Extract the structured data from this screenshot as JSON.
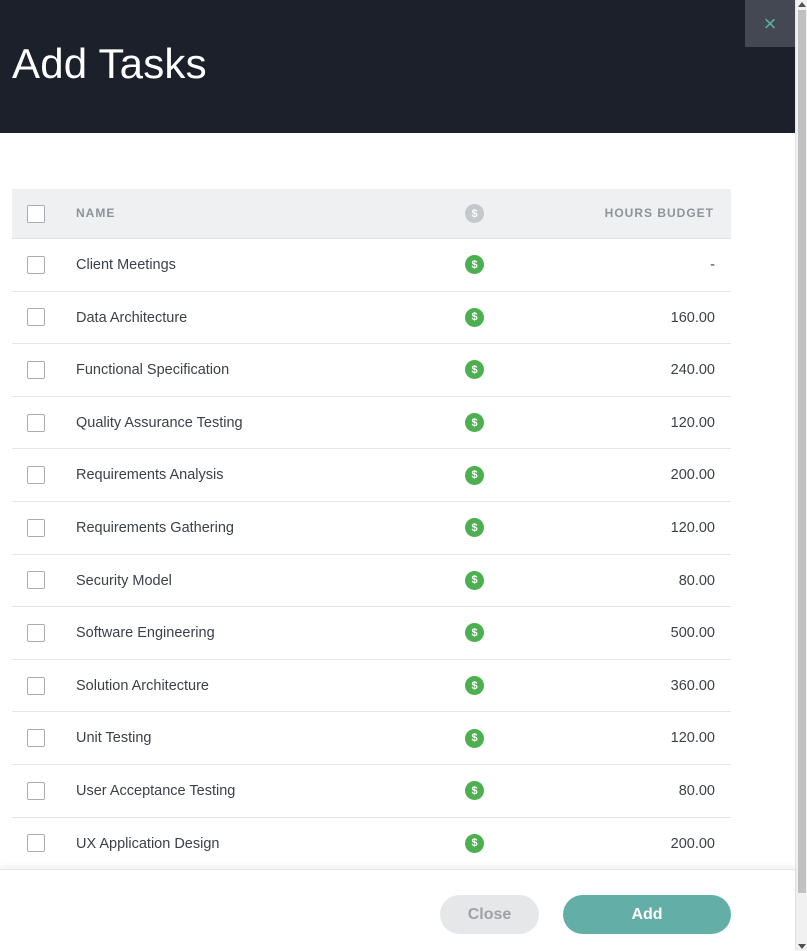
{
  "dialog": {
    "title": "Add Tasks",
    "close_icon": "×"
  },
  "table": {
    "headers": {
      "name": "NAME",
      "billable_icon": "$",
      "hours_budget": "HOURS BUDGET"
    },
    "rows": [
      {
        "name": "Client Meetings",
        "billable_icon": "$",
        "hours_budget": "-"
      },
      {
        "name": "Data Architecture",
        "billable_icon": "$",
        "hours_budget": "160.00"
      },
      {
        "name": "Functional Specification",
        "billable_icon": "$",
        "hours_budget": "240.00"
      },
      {
        "name": "Quality Assurance Testing",
        "billable_icon": "$",
        "hours_budget": "120.00"
      },
      {
        "name": "Requirements Analysis",
        "billable_icon": "$",
        "hours_budget": "200.00"
      },
      {
        "name": "Requirements Gathering",
        "billable_icon": "$",
        "hours_budget": "120.00"
      },
      {
        "name": "Security Model",
        "billable_icon": "$",
        "hours_budget": "80.00"
      },
      {
        "name": "Software Engineering",
        "billable_icon": "$",
        "hours_budget": "500.00"
      },
      {
        "name": "Solution Architecture",
        "billable_icon": "$",
        "hours_budget": "360.00"
      },
      {
        "name": "Unit Testing",
        "billable_icon": "$",
        "hours_budget": "120.00"
      },
      {
        "name": "User Acceptance Testing",
        "billable_icon": "$",
        "hours_budget": "80.00"
      },
      {
        "name": "UX Application Design",
        "billable_icon": "$",
        "hours_budget": "200.00"
      }
    ]
  },
  "footer": {
    "close_label": "Close",
    "add_label": "Add"
  },
  "colors": {
    "header_bg": "#1b202a",
    "accent": "#63afa7",
    "billable_green": "#4caf50"
  }
}
